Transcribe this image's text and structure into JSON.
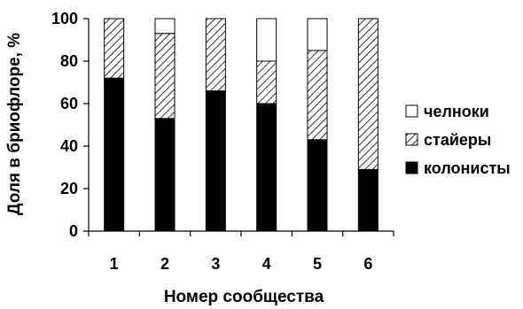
{
  "chart_data": {
    "type": "bar",
    "stacked": true,
    "normalized_percent": true,
    "categories": [
      "1",
      "2",
      "3",
      "4",
      "5",
      "6"
    ],
    "series": [
      {
        "name": "колонисты",
        "values": [
          72,
          53,
          66,
          60,
          43,
          29
        ],
        "fill": "solid-black"
      },
      {
        "name": "стайеры",
        "values": [
          28,
          40,
          34,
          20,
          42,
          71
        ],
        "fill": "diagonal-hatch"
      },
      {
        "name": "челноки",
        "values": [
          0,
          7,
          0,
          20,
          15,
          0
        ],
        "fill": "white"
      }
    ],
    "legend_order": [
      "челноки",
      "стайеры",
      "колонисты"
    ],
    "xlabel": "Номер сообщества",
    "ylabel": "Доля в бриофлоре, %",
    "ylim": [
      0,
      100
    ],
    "yticks": [
      0,
      20,
      40,
      60,
      80,
      100
    ],
    "grid": false,
    "legend_position": "right"
  },
  "colors": {
    "solid": "#000000",
    "hatch_stroke": "#000000",
    "empty": "#ffffff",
    "outline": "#000000"
  }
}
